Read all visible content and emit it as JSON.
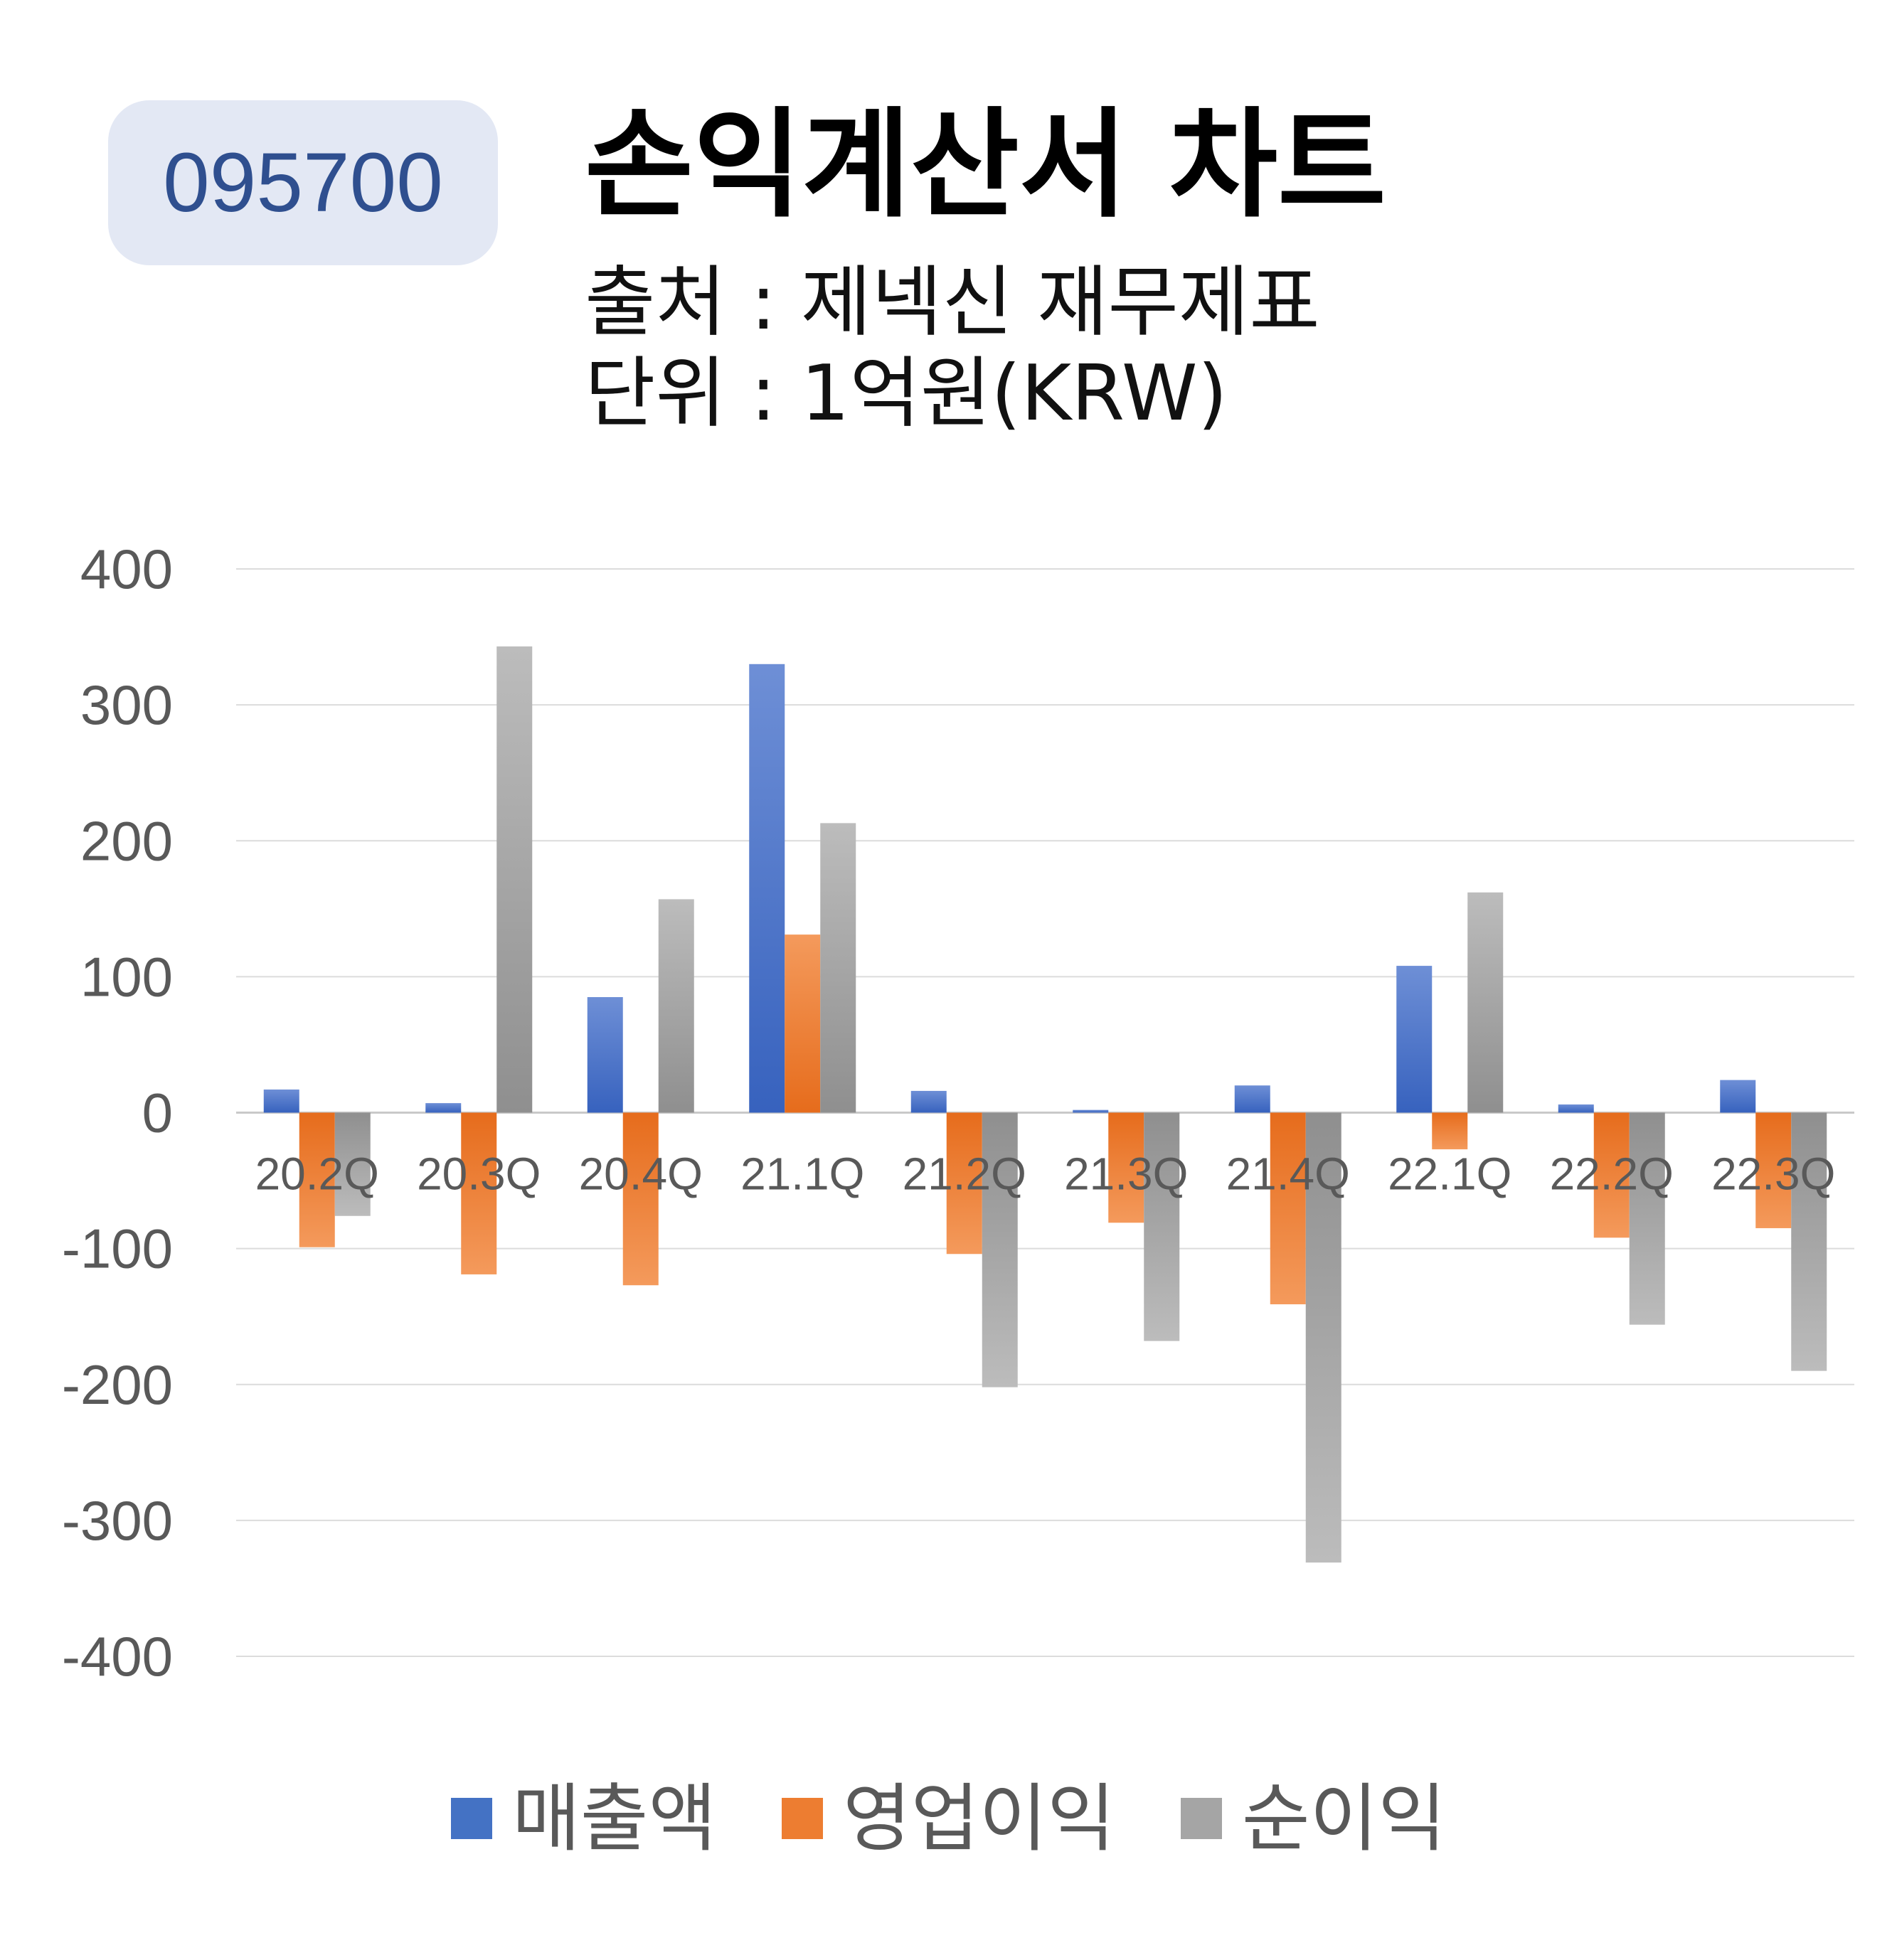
{
  "header": {
    "code": "095700",
    "title": "손익계산서 차트",
    "source": "출처 : 제넥신 재무제표",
    "unit": "단위 : 1억원(KRW)"
  },
  "chart_data": {
    "type": "bar",
    "categories": [
      "20.2Q",
      "20.3Q",
      "20.4Q",
      "21.1Q",
      "21.2Q",
      "21.3Q",
      "21.4Q",
      "22.1Q",
      "22.2Q",
      "22.3Q"
    ],
    "series": [
      {
        "name": "매출액",
        "color": "#4472c4",
        "values": [
          17,
          7,
          85,
          330,
          16,
          2,
          20,
          108,
          6,
          24
        ]
      },
      {
        "name": "영업이익",
        "color": "#ed7d31",
        "values": [
          -99,
          -119,
          -127,
          131,
          -104,
          -81,
          -141,
          -27,
          -92,
          -85
        ]
      },
      {
        "name": "순이익",
        "color": "#a5a5a5",
        "values": [
          -76,
          343,
          157,
          213,
          -202,
          -168,
          -331,
          162,
          -156,
          -190
        ]
      }
    ],
    "yticks": [
      400,
      300,
      200,
      100,
      0,
      -100,
      -200,
      -300,
      -400
    ],
    "ylim": [
      -400,
      400
    ],
    "grid": true,
    "legend": "bottom"
  }
}
